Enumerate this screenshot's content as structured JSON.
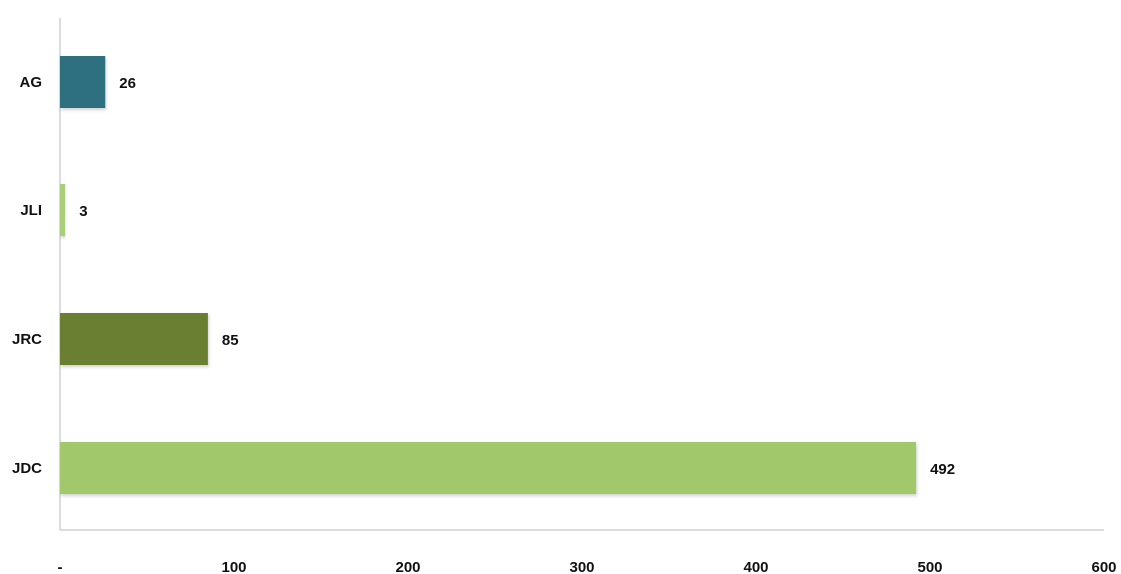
{
  "chart_data": {
    "type": "bar",
    "orientation": "horizontal",
    "title": "",
    "xlabel": "",
    "ylabel": "",
    "categories": [
      "AG",
      "JLI",
      "JRC",
      "JDC"
    ],
    "values": [
      26,
      3,
      85,
      492
    ],
    "value_labels": [
      "26",
      "3",
      "85",
      "492"
    ],
    "colors": [
      "#2e6f80",
      "#a9cf7a",
      "#6b7f33",
      "#a2c86c"
    ],
    "xlim": [
      0,
      600
    ],
    "xticks": [
      0,
      100,
      200,
      300,
      400,
      500,
      600
    ],
    "xtick_labels": [
      "-",
      "100",
      "200",
      "300",
      "400",
      "500",
      "600"
    ],
    "grid": false,
    "legend": "none"
  }
}
